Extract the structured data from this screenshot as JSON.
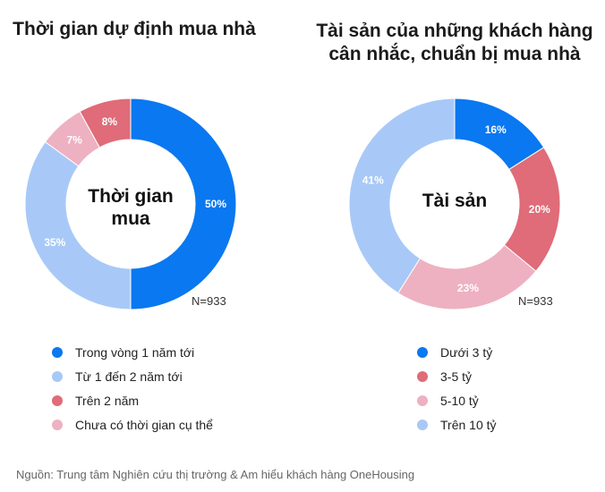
{
  "source": "Nguồn: Trung tâm Nghiên cứu thị trường & Am hiểu khách hàng OneHousing",
  "colors": {
    "blue": "#0a78f0",
    "light_blue": "#a8c9f7",
    "red": "#df6c78",
    "pink": "#eeb1c2"
  },
  "chart_data": [
    {
      "type": "pie",
      "title": "Thời gian dự định mua nhà",
      "center_label": "Thời gian mua",
      "n_label": "N=933",
      "slices": [
        {
          "label": "Trong vòng 1 năm tới",
          "value": 50,
          "value_label": "50%",
          "color": "#0a78f0"
        },
        {
          "label": "Từ 1 đến 2 năm tới",
          "value": 35,
          "value_label": "35%",
          "color": "#a8c9f7"
        },
        {
          "label": "Chưa có thời gian cụ thể",
          "value": 7,
          "value_label": "7%",
          "color": "#eeb1c2"
        },
        {
          "label": "Trên 2 năm",
          "value": 8,
          "value_label": "8%",
          "color": "#df6c78"
        }
      ],
      "legend": [
        {
          "label": "Trong vòng 1 năm tới",
          "color": "#0a78f0"
        },
        {
          "label": "Từ 1 đến 2 năm tới",
          "color": "#a8c9f7"
        },
        {
          "label": "Trên 2 năm",
          "color": "#df6c78"
        },
        {
          "label": "Chưa có thời gian cụ thể",
          "color": "#eeb1c2"
        }
      ]
    },
    {
      "type": "pie",
      "title": "Tài sản của những khách hàng cân nhắc, chuẩn bị mua nhà",
      "center_label": "Tài sản",
      "n_label": "N=933",
      "slices": [
        {
          "label": "Dưới 3 tỷ",
          "value": 16,
          "value_label": "16%",
          "color": "#0a78f0"
        },
        {
          "label": "3-5 tỷ",
          "value": 20,
          "value_label": "20%",
          "color": "#df6c78"
        },
        {
          "label": "5-10 tỷ",
          "value": 23,
          "value_label": "23%",
          "color": "#eeb1c2"
        },
        {
          "label": "Trên 10 tỷ",
          "value": 41,
          "value_label": "41%",
          "color": "#a8c9f7"
        }
      ],
      "legend": [
        {
          "label": "Dưới 3 tỷ",
          "color": "#0a78f0"
        },
        {
          "label": "3-5 tỷ",
          "color": "#df6c78"
        },
        {
          "label": "5-10 tỷ",
          "color": "#eeb1c2"
        },
        {
          "label": "Trên 10 tỷ",
          "color": "#a8c9f7"
        }
      ]
    }
  ]
}
